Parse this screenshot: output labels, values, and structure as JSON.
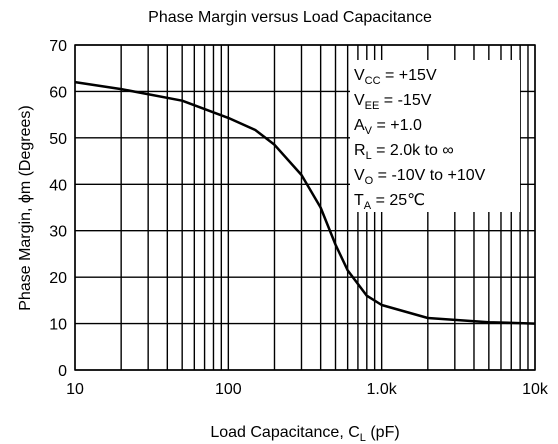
{
  "chart_data": {
    "type": "line",
    "title": "Phase Margin versus Load Capacitance",
    "x_label": {
      "text": "Load Capacitance, C",
      "subscript": "L",
      "suffix": " (pF)"
    },
    "y_label": "Phase Margin, ϕm (Degrees)",
    "x_log": true,
    "minor_grid": true,
    "grid": true,
    "xlim": [
      10,
      10000
    ],
    "ylim": [
      0,
      70
    ],
    "xticks": [
      10,
      100,
      {
        "value": 1000,
        "label": "1.0k"
      },
      {
        "value": 10000,
        "label": "10k"
      }
    ],
    "yticks": [
      0,
      10,
      20,
      30,
      40,
      50,
      60,
      70
    ],
    "x": [
      10,
      20,
      50,
      100,
      150,
      200,
      300,
      400,
      500,
      600,
      800,
      1000,
      2000,
      5000,
      10000
    ],
    "series": [
      {
        "color": "#000000",
        "values": [
          62,
          60.5,
          58,
          54.3,
          51.7,
          48.5,
          42,
          35,
          27,
          21.5,
          16,
          14,
          11.2,
          10.3,
          10
        ]
      }
    ],
    "annotations": [
      {
        "symbol": "V",
        "subscript": "CC",
        "text": " = +15V"
      },
      {
        "symbol": "V",
        "subscript": "EE",
        "text": " = -15V"
      },
      {
        "symbol": "A",
        "subscript": "V",
        "text": " = +1.0"
      },
      {
        "symbol": "R",
        "subscript": "L",
        "text": " = 2.0k to ∞"
      },
      {
        "symbol": "V",
        "subscript": "O",
        "text": " = -10V to +10V"
      },
      {
        "symbol": "T",
        "subscript": "A",
        "text": " = 25℃"
      }
    ]
  }
}
